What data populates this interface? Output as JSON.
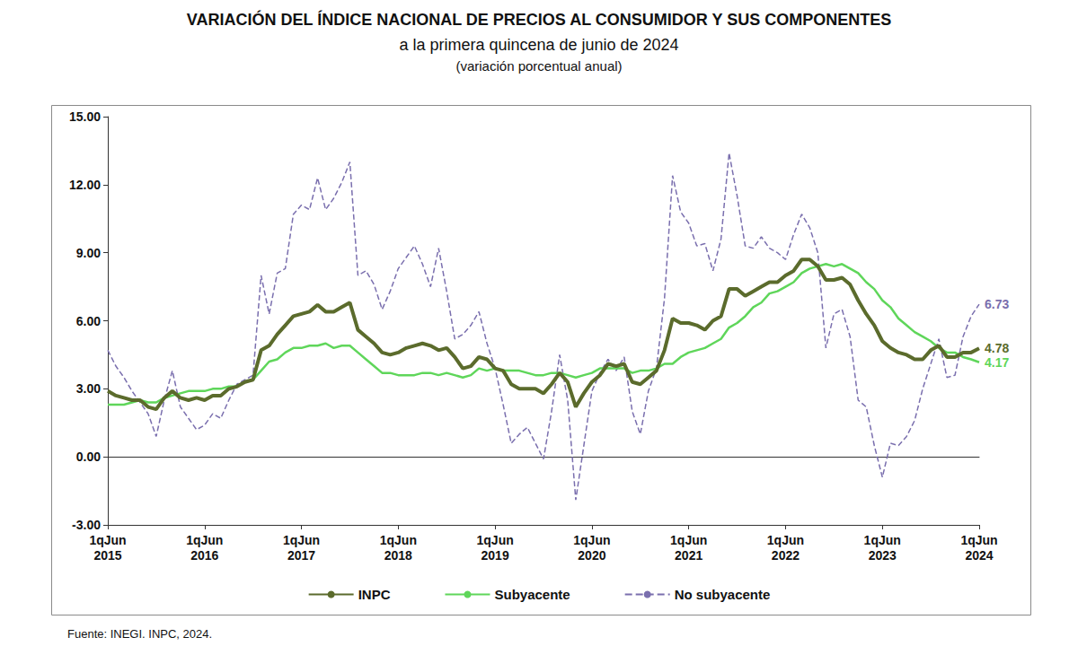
{
  "chart_data": {
    "type": "line",
    "title": "VARIACIÓN DEL ÍNDICE NACIONAL DE PRECIOS AL CONSUMIDOR Y SUS COMPONENTES",
    "subtitle": [
      "a la primera quincena de junio de 2024",
      "(variación porcentual anual)"
    ],
    "source": "Fuente: INEGI. INPC, 2024.",
    "categories": [
      "1qJun\n2015",
      null,
      null,
      null,
      null,
      null,
      null,
      null,
      null,
      null,
      null,
      null,
      "1qJun\n2016",
      null,
      null,
      null,
      null,
      null,
      null,
      null,
      null,
      null,
      null,
      null,
      "1qJun\n2017",
      null,
      null,
      null,
      null,
      null,
      null,
      null,
      null,
      null,
      null,
      null,
      "1qJun\n2018",
      null,
      null,
      null,
      null,
      null,
      null,
      null,
      null,
      null,
      null,
      null,
      "1qJun\n2019",
      null,
      null,
      null,
      null,
      null,
      null,
      null,
      null,
      null,
      null,
      null,
      "1qJun\n2020",
      null,
      null,
      null,
      null,
      null,
      null,
      null,
      null,
      null,
      null,
      null,
      "1qJun\n2021",
      null,
      null,
      null,
      null,
      null,
      null,
      null,
      null,
      null,
      null,
      null,
      "1qJun\n2022",
      null,
      null,
      null,
      null,
      null,
      null,
      null,
      null,
      null,
      null,
      null,
      "1qJun\n2023",
      null,
      null,
      null,
      null,
      null,
      null,
      null,
      null,
      null,
      null,
      null,
      "1qJun\n2024"
    ],
    "series": [
      {
        "name": "INPC",
        "color": "#5b6b2c",
        "line_style": "solid",
        "values": [
          2.9,
          2.7,
          2.6,
          2.5,
          2.5,
          2.2,
          2.1,
          2.6,
          2.9,
          2.6,
          2.5,
          2.6,
          2.5,
          2.7,
          2.7,
          3.0,
          3.1,
          3.3,
          3.4,
          4.7,
          4.9,
          5.4,
          5.8,
          6.2,
          6.3,
          6.4,
          6.7,
          6.4,
          6.4,
          6.6,
          6.8,
          5.6,
          5.3,
          5.0,
          4.6,
          4.5,
          4.6,
          4.8,
          4.9,
          5.0,
          4.9,
          4.7,
          4.8,
          4.4,
          3.9,
          4.0,
          4.4,
          4.3,
          3.9,
          3.8,
          3.2,
          3.0,
          3.0,
          3.0,
          2.8,
          3.2,
          3.7,
          3.3,
          2.2,
          2.8,
          3.3,
          3.6,
          4.1,
          4.0,
          4.1,
          3.3,
          3.2,
          3.5,
          3.8,
          4.7,
          6.1,
          5.9,
          5.9,
          5.8,
          5.6,
          6.0,
          6.2,
          7.4,
          7.4,
          7.1,
          7.3,
          7.5,
          7.7,
          7.7,
          8.0,
          8.2,
          8.7,
          8.7,
          8.4,
          7.8,
          7.8,
          7.9,
          7.6,
          6.9,
          6.3,
          5.8,
          5.1,
          4.8,
          4.6,
          4.5,
          4.3,
          4.3,
          4.7,
          4.9,
          4.4,
          4.4,
          4.6,
          4.6,
          4.78
        ]
      },
      {
        "name": "Subyacente",
        "color": "#5fd65a",
        "line_style": "solid",
        "values": [
          2.3,
          2.3,
          2.3,
          2.4,
          2.5,
          2.4,
          2.4,
          2.6,
          2.7,
          2.8,
          2.9,
          2.9,
          2.9,
          3.0,
          3.0,
          3.1,
          3.1,
          3.3,
          3.4,
          3.8,
          4.2,
          4.3,
          4.6,
          4.8,
          4.8,
          4.9,
          4.9,
          5.0,
          4.8,
          4.9,
          4.9,
          4.6,
          4.3,
          4.0,
          3.7,
          3.7,
          3.6,
          3.6,
          3.6,
          3.7,
          3.7,
          3.6,
          3.7,
          3.6,
          3.5,
          3.6,
          3.9,
          3.8,
          3.9,
          3.8,
          3.8,
          3.8,
          3.7,
          3.6,
          3.6,
          3.7,
          3.7,
          3.6,
          3.5,
          3.6,
          3.7,
          3.9,
          3.9,
          3.9,
          3.9,
          3.7,
          3.8,
          3.8,
          3.9,
          4.1,
          4.1,
          4.4,
          4.6,
          4.7,
          4.8,
          5.0,
          5.2,
          5.7,
          5.9,
          6.2,
          6.6,
          6.8,
          7.2,
          7.3,
          7.5,
          7.7,
          8.1,
          8.3,
          8.4,
          8.5,
          8.4,
          8.5,
          8.3,
          8.1,
          7.7,
          7.4,
          6.9,
          6.6,
          6.1,
          5.8,
          5.5,
          5.3,
          5.1,
          4.8,
          4.6,
          4.6,
          4.4,
          4.3,
          4.17
        ]
      },
      {
        "name": "No subyacente",
        "color": "#7a6fae",
        "line_style": "dashed",
        "values": [
          4.7,
          4.0,
          3.5,
          2.9,
          2.4,
          1.9,
          0.9,
          2.5,
          3.8,
          2.2,
          1.7,
          1.2,
          1.4,
          1.9,
          1.7,
          2.5,
          3.2,
          3.4,
          3.6,
          8.0,
          6.3,
          8.1,
          8.3,
          10.7,
          11.1,
          10.9,
          12.3,
          10.9,
          11.4,
          12.1,
          13.0,
          8.0,
          8.2,
          7.6,
          6.5,
          7.3,
          8.3,
          8.8,
          9.3,
          8.5,
          7.5,
          9.2,
          7.3,
          5.2,
          5.4,
          5.8,
          6.4,
          5.0,
          3.9,
          2.3,
          0.6,
          1.0,
          1.3,
          0.6,
          -0.1,
          2.0,
          4.5,
          2.5,
          -1.9,
          0.5,
          2.9,
          3.7,
          4.3,
          3.8,
          4.4,
          2.0,
          1.0,
          2.9,
          3.9,
          7.0,
          12.4,
          10.8,
          10.3,
          9.3,
          9.4,
          8.2,
          9.6,
          13.4,
          11.5,
          9.3,
          9.2,
          9.7,
          9.2,
          9.0,
          8.7,
          9.8,
          10.7,
          10.1,
          9.0,
          4.8,
          6.3,
          6.5,
          5.3,
          2.5,
          2.2,
          0.5,
          -0.9,
          0.6,
          0.5,
          0.9,
          1.6,
          3.0,
          4.1,
          5.2,
          3.5,
          3.6,
          5.3,
          6.2,
          6.73
        ]
      }
    ],
    "annotations": [
      {
        "series": "No subyacente",
        "text": "6.73"
      },
      {
        "series": "INPC",
        "text": "4.78"
      },
      {
        "series": "Subyacente",
        "text": "4.17"
      }
    ],
    "ylim": [
      -3,
      15
    ],
    "yticks": [
      {
        "value": -3,
        "label": "-3.00"
      },
      {
        "value": 0,
        "label": "0.00"
      },
      {
        "value": 3,
        "label": "3.00"
      },
      {
        "value": 6,
        "label": "6.00"
      },
      {
        "value": 9,
        "label": "9.00"
      },
      {
        "value": 12,
        "label": "12.00"
      },
      {
        "value": 15,
        "label": "15.00"
      }
    ],
    "grid": false,
    "legend": "bottom"
  }
}
